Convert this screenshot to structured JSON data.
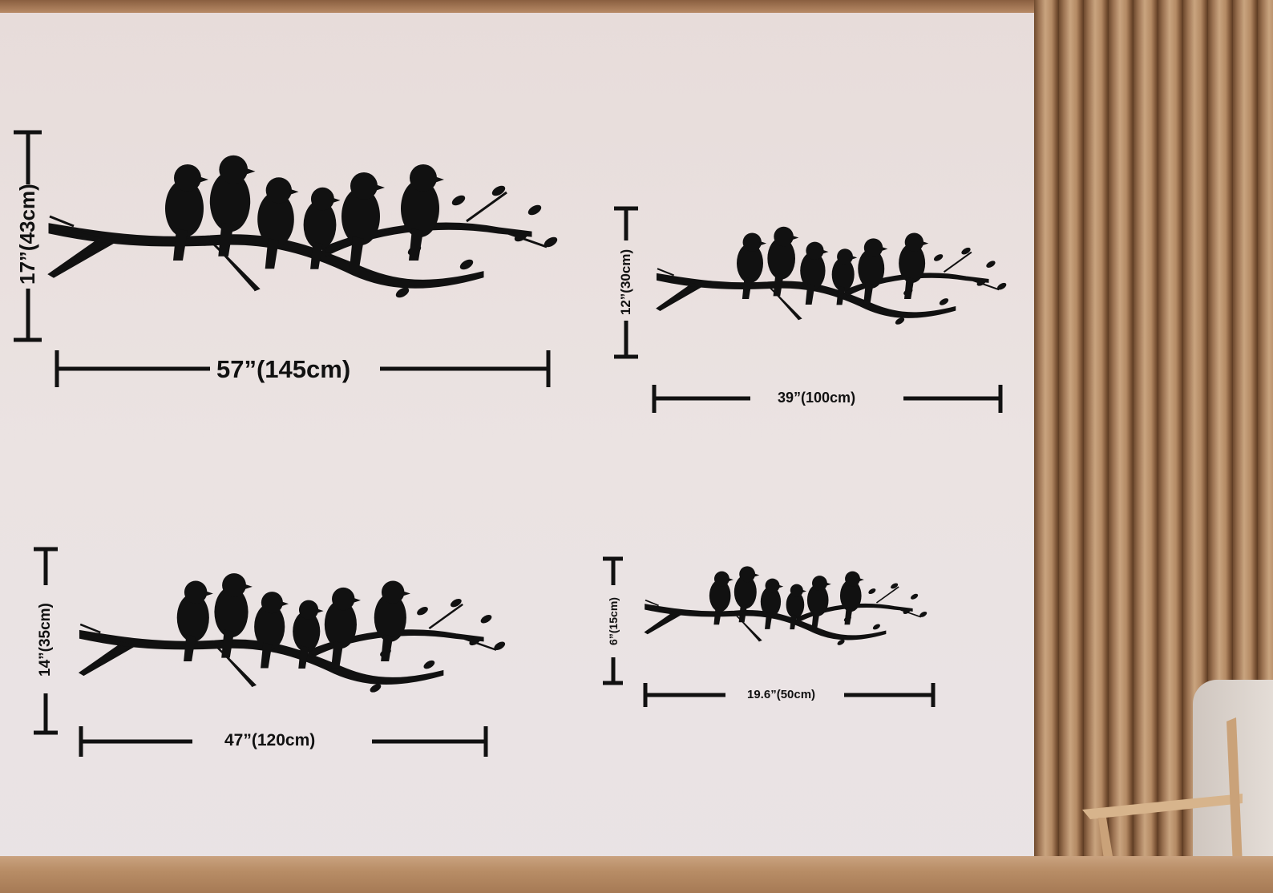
{
  "product": {
    "decals": [
      {
        "size": "large",
        "height_label": "17”(43cm)",
        "width_label": "57”(145cm)"
      },
      {
        "size": "medium",
        "height_label": "12”(30cm)",
        "width_label": "39”(100cm)"
      },
      {
        "size": "medium-large",
        "height_label": "14”(35cm)",
        "width_label": "47”(120cm)"
      },
      {
        "size": "small",
        "height_label": "6”(15cm)",
        "width_label": "19.6”(50cm)"
      }
    ],
    "silhouette": "birds-on-branch",
    "birds_per_decal": 6,
    "colors": {
      "decal": "#111111",
      "wall": "#e9e1e0",
      "wood": "#a67a55"
    }
  }
}
